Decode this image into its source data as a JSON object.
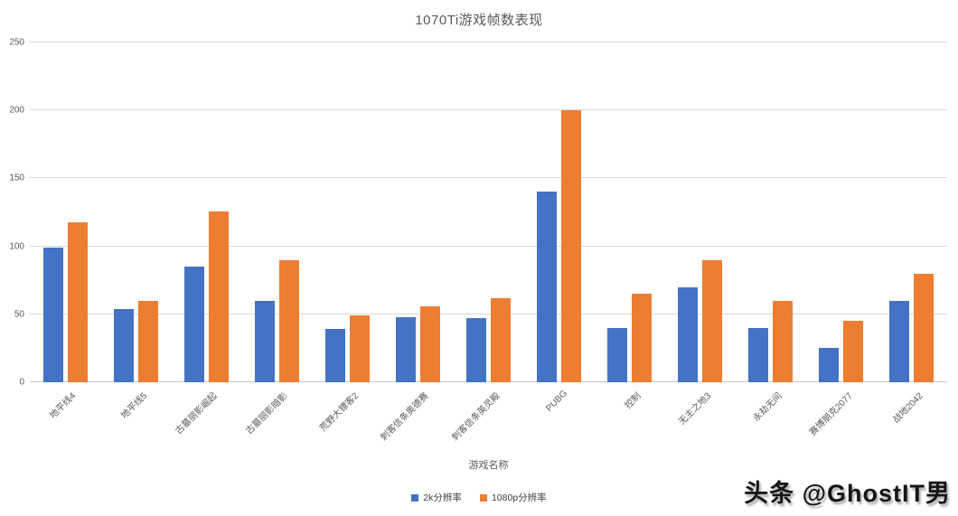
{
  "title": "1070Ti游戏帧数表现",
  "watermark": {
    "text": "头条 @GhostIT男"
  },
  "colors": {
    "series_2k": "#4472C4",
    "series_1080p": "#ED7D31",
    "gridline": "#D9D9D9",
    "axis_text": "#595959",
    "background": "#FFFFFF"
  },
  "chart_data": {
    "type": "bar",
    "title": "1070Ti游戏帧数表现",
    "xlabel": "游戏名称",
    "ylabel": "",
    "ylim": [
      0,
      250
    ],
    "ytick_step": 50,
    "yticks": [
      0,
      50,
      100,
      150,
      200,
      250
    ],
    "grid": true,
    "legend_position": "bottom",
    "categories": [
      "地平线4",
      "地平线5",
      "古墓丽影崛起",
      "古墓丽影暗影",
      "荒野大镖客2",
      "刺客信条奥德赛",
      "刺客信条英灵殿",
      "PUBG",
      "控制",
      "无主之地3",
      "永劫无间",
      "赛博朋克2077",
      "战地2042"
    ],
    "series": [
      {
        "name": "2k分辨率",
        "color": "#4472C4",
        "values": [
          99,
          54,
          85,
          60,
          39,
          48,
          47,
          140,
          40,
          70,
          40,
          25,
          60
        ]
      },
      {
        "name": "1080p分辨率",
        "color": "#ED7D31",
        "values": [
          118,
          60,
          126,
          90,
          49,
          56,
          62,
          200,
          65,
          90,
          60,
          45,
          80
        ]
      }
    ]
  }
}
